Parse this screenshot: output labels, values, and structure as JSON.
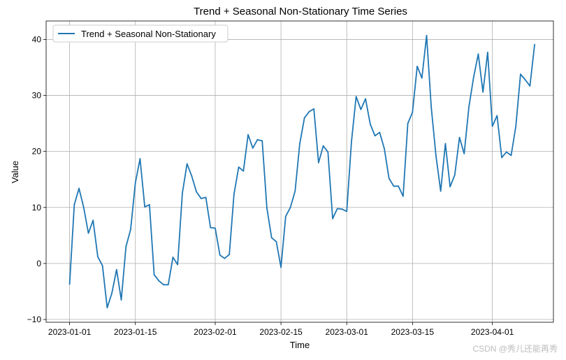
{
  "chart_data": {
    "type": "line",
    "title": "Trend + Seasonal Non-Stationary Time Series",
    "xlabel": "Time",
    "ylabel": "Value",
    "grid": true,
    "legend_position": "top-left",
    "x_start": "2023-01-01",
    "x_end": "2023-04-10",
    "xlim": [
      "2022-12-27",
      "2023-04-14"
    ],
    "ylim": [
      -10.5,
      43.3
    ],
    "x_ticks": [
      "2023-01-01",
      "2023-01-15",
      "2023-02-01",
      "2023-02-15",
      "2023-03-01",
      "2023-03-15",
      "2023-04-01"
    ],
    "y_ticks": [
      -10,
      0,
      10,
      20,
      30,
      40
    ],
    "series": [
      {
        "name": "Trend + Seasonal Non-Stationary",
        "color": "#1f77b4",
        "values": [
          -3.7,
          10.5,
          13.4,
          10.0,
          5.4,
          7.7,
          1.2,
          -0.4,
          -7.9,
          -5.3,
          -1.1,
          -6.5,
          3.0,
          6.1,
          14.4,
          18.7,
          10.1,
          10.5,
          -2.0,
          -3.1,
          -3.8,
          -3.8,
          1.1,
          -0.2,
          12.5,
          17.8,
          15.6,
          12.8,
          11.6,
          11.8,
          6.4,
          6.3,
          1.5,
          0.9,
          1.6,
          12.4,
          17.2,
          16.5,
          23.0,
          20.6,
          22.1,
          21.9,
          9.9,
          4.6,
          3.9,
          -0.7,
          8.4,
          10.0,
          12.9,
          21.4,
          26.0,
          27.1,
          27.6,
          18.0,
          21.0,
          19.9,
          8.0,
          9.8,
          9.7,
          9.3,
          21.7,
          29.8,
          27.5,
          29.4,
          24.9,
          22.8,
          23.4,
          20.5,
          15.2,
          13.8,
          13.8,
          12.0,
          25.0,
          27.0,
          35.2,
          33.1,
          40.7,
          27.8,
          19.2,
          12.9,
          21.4,
          13.7,
          15.8,
          22.5,
          19.6,
          27.9,
          33.2,
          37.4,
          30.6,
          37.7,
          24.5,
          26.4,
          18.9,
          19.9,
          19.3,
          24.5,
          33.8,
          32.8,
          31.7,
          39.1
        ]
      }
    ]
  },
  "watermark": "CSDN @秀儿还能再秀"
}
